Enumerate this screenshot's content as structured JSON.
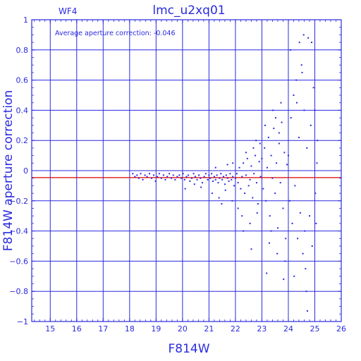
{
  "chart_data": {
    "type": "scatter",
    "title": "lmc_u2xq01",
    "panel_label": "WF4",
    "annotation": "Average aperture correction: -0.046",
    "xlabel": "F814W",
    "ylabel": "F814W aperture correction",
    "xlim": [
      14.3,
      26
    ],
    "ylim": [
      -1,
      1
    ],
    "xticks": [
      15,
      16,
      17,
      18,
      19,
      20,
      21,
      22,
      23,
      24,
      25,
      26
    ],
    "yticks": [
      -1,
      -0.8,
      -0.6,
      -0.4,
      -0.2,
      0,
      0.2,
      0.4,
      0.6,
      0.8,
      1
    ],
    "ytick_labels": [
      "−1",
      "−0.8",
      "−0.6",
      "−0.4",
      "−0.2",
      "0",
      "0.2",
      "0.4",
      "0.6",
      "0.8",
      "1"
    ],
    "grid": true,
    "reference_line": {
      "y": -0.046,
      "color": "#e00000"
    },
    "colors": {
      "axes": "#2a2adf",
      "points": "#2a2adf",
      "reference": "#e00000",
      "background": "#ffffff"
    },
    "series": [
      {
        "points": [
          [
            18.12,
            -0.02
          ],
          [
            18.2,
            -0.04
          ],
          [
            18.28,
            -0.03
          ],
          [
            18.35,
            -0.05
          ],
          [
            18.42,
            -0.02
          ],
          [
            18.5,
            -0.06
          ],
          [
            18.58,
            -0.03
          ],
          [
            18.66,
            -0.04
          ],
          [
            18.75,
            -0.02
          ],
          [
            18.83,
            -0.05
          ],
          [
            18.91,
            -0.03
          ],
          [
            18.98,
            -0.07
          ],
          [
            19.05,
            -0.04
          ],
          [
            19.12,
            -0.02
          ],
          [
            19.2,
            -0.05
          ],
          [
            19.28,
            -0.03
          ],
          [
            19.35,
            -0.06
          ],
          [
            19.42,
            -0.04
          ],
          [
            19.5,
            -0.02
          ],
          [
            19.58,
            -0.05
          ],
          [
            19.65,
            -0.03
          ],
          [
            19.72,
            -0.06
          ],
          [
            19.8,
            -0.04
          ],
          [
            19.88,
            -0.03
          ],
          [
            19.95,
            -0.05
          ],
          [
            20.02,
            -0.02
          ],
          [
            20.08,
            -0.06
          ],
          [
            20.15,
            -0.04
          ],
          [
            20.22,
            -0.03
          ],
          [
            20.28,
            -0.07
          ],
          [
            20.35,
            -0.05
          ],
          [
            20.42,
            -0.02
          ],
          [
            20.48,
            -0.04
          ],
          [
            20.55,
            -0.06
          ],
          [
            20.62,
            -0.03
          ],
          [
            20.68,
            -0.05
          ],
          [
            20.75,
            -0.08
          ],
          [
            20.82,
            -0.04
          ],
          [
            20.88,
            -0.02
          ],
          [
            20.95,
            -0.06
          ],
          [
            20.1,
            -0.12
          ],
          [
            20.45,
            -0.09
          ],
          [
            20.7,
            -0.11
          ],
          [
            21.0,
            -0.03
          ],
          [
            21.05,
            -0.05
          ],
          [
            21.1,
            -0.02
          ],
          [
            21.15,
            -0.07
          ],
          [
            21.2,
            -0.04
          ],
          [
            21.25,
            -0.06
          ],
          [
            21.3,
            -0.03
          ],
          [
            21.35,
            -0.08
          ],
          [
            21.4,
            -0.05
          ],
          [
            21.45,
            -0.02
          ],
          [
            21.5,
            -0.06
          ],
          [
            21.55,
            -0.04
          ],
          [
            21.6,
            -0.09
          ],
          [
            21.65,
            -0.03
          ],
          [
            21.7,
            -0.05
          ],
          [
            21.75,
            -0.07
          ],
          [
            21.8,
            -0.02
          ],
          [
            21.85,
            -0.06
          ],
          [
            21.9,
            -0.04
          ],
          [
            21.95,
            -0.1
          ],
          [
            21.12,
            -0.15
          ],
          [
            21.38,
            -0.18
          ],
          [
            21.62,
            -0.13
          ],
          [
            21.88,
            -0.2
          ],
          [
            21.25,
            0.02
          ],
          [
            21.7,
            0.04
          ],
          [
            21.48,
            -0.22
          ],
          [
            21.9,
            0.05
          ],
          [
            22.0,
            -0.05
          ],
          [
            22.05,
            -0.02
          ],
          [
            22.1,
            -0.08
          ],
          [
            22.15,
            0.02
          ],
          [
            22.2,
            -0.12
          ],
          [
            22.25,
            -0.04
          ],
          [
            22.3,
            0.05
          ],
          [
            22.35,
            -0.15
          ],
          [
            22.4,
            -0.03
          ],
          [
            22.45,
            0.08
          ],
          [
            22.5,
            -0.1
          ],
          [
            22.55,
            -0.06
          ],
          [
            22.6,
            0.03
          ],
          [
            22.65,
            -0.18
          ],
          [
            22.7,
            -0.02
          ],
          [
            22.75,
            0.1
          ],
          [
            22.8,
            -0.08
          ],
          [
            22.85,
            -0.22
          ],
          [
            22.9,
            0.06
          ],
          [
            22.95,
            -0.04
          ],
          [
            22.1,
            -0.25
          ],
          [
            22.25,
            -0.3
          ],
          [
            22.4,
            0.12
          ],
          [
            22.55,
            -0.35
          ],
          [
            22.68,
            0.15
          ],
          [
            22.82,
            -0.28
          ],
          [
            22.93,
            0.18
          ],
          [
            22.3,
            -0.4
          ],
          [
            22.6,
            -0.52
          ],
          [
            22.78,
            0.2
          ],
          [
            23.0,
            0.08
          ],
          [
            23.05,
            -0.12
          ],
          [
            23.1,
            0.15
          ],
          [
            23.15,
            -0.2
          ],
          [
            23.2,
            0.02
          ],
          [
            23.25,
            0.22
          ],
          [
            23.3,
            -0.3
          ],
          [
            23.35,
            0.1
          ],
          [
            23.4,
            -0.05
          ],
          [
            23.45,
            0.28
          ],
          [
            23.5,
            -0.15
          ],
          [
            23.55,
            0.05
          ],
          [
            23.6,
            -0.38
          ],
          [
            23.65,
            0.18
          ],
          [
            23.7,
            -0.08
          ],
          [
            23.75,
            0.32
          ],
          [
            23.8,
            -0.25
          ],
          [
            23.85,
            0.12
          ],
          [
            23.9,
            -0.45
          ],
          [
            23.95,
            0.04
          ],
          [
            23.12,
            0.3
          ],
          [
            23.28,
            -0.48
          ],
          [
            23.42,
            0.4
          ],
          [
            23.58,
            -0.55
          ],
          [
            23.72,
            0.45
          ],
          [
            23.88,
            -0.6
          ],
          [
            23.18,
            -0.68
          ],
          [
            23.52,
            0.35
          ],
          [
            23.82,
            -0.72
          ],
          [
            23.35,
            -0.4
          ],
          [
            23.65,
            0.25
          ],
          [
            24.0,
            0.1
          ],
          [
            24.05,
            -0.2
          ],
          [
            24.1,
            0.35
          ],
          [
            24.15,
            -0.35
          ],
          [
            24.2,
            0.5
          ],
          [
            24.25,
            -0.1
          ],
          [
            24.3,
            0.6
          ],
          [
            24.35,
            -0.45
          ],
          [
            24.4,
            0.22
          ],
          [
            24.45,
            -0.28
          ],
          [
            24.5,
            0.7
          ],
          [
            24.55,
            -0.55
          ],
          [
            24.6,
            0.4
          ],
          [
            24.65,
            -0.65
          ],
          [
            24.7,
            0.15
          ],
          [
            24.75,
            0.88
          ],
          [
            24.8,
            -0.3
          ],
          [
            24.85,
            0.3
          ],
          [
            24.9,
            -0.5
          ],
          [
            24.95,
            0.55
          ],
          [
            24.08,
            0.8
          ],
          [
            24.22,
            -0.7
          ],
          [
            24.42,
            0.85
          ],
          [
            24.58,
            0.9
          ],
          [
            24.68,
            -0.8
          ],
          [
            24.72,
            -0.93
          ],
          [
            24.88,
            0.85
          ],
          [
            24.52,
            0.65
          ],
          [
            24.32,
            0.45
          ],
          [
            24.62,
            -0.4
          ],
          [
            25.0,
            0.4
          ],
          [
            25.05,
            -0.35
          ],
          [
            25.1,
            0.2
          ],
          [
            25.02,
            -0.15
          ],
          [
            25.08,
            0.05
          ]
        ]
      }
    ]
  }
}
